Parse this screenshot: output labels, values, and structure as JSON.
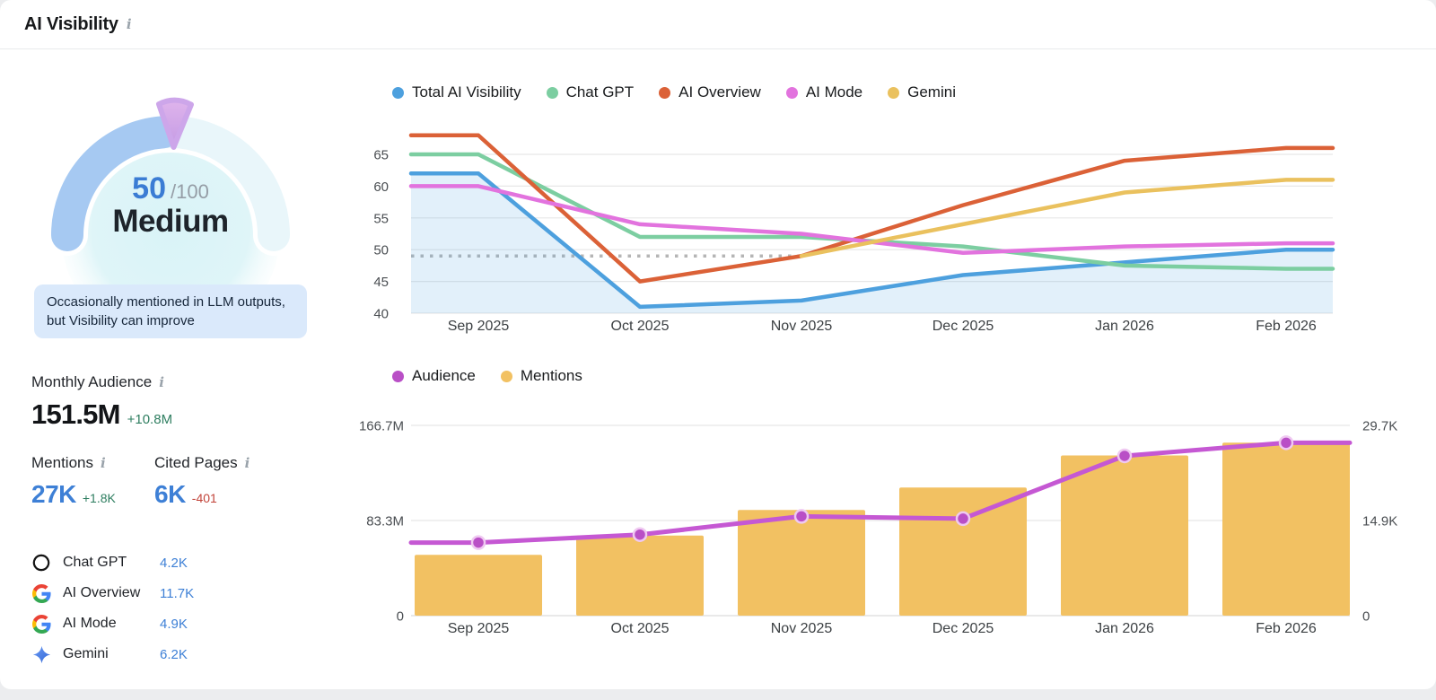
{
  "header": {
    "title": "AI Visibility",
    "info_glyph": "i"
  },
  "gauge": {
    "score": "50",
    "denominator": "/100",
    "level": "Medium",
    "insight": "Occasionally mentioned in LLM outputs, but Visibility can improve"
  },
  "stats": {
    "monthly_audience": {
      "label": "Monthly Audience",
      "value": "151.5M",
      "change": "+10.8M",
      "trend": "up"
    },
    "mentions": {
      "label": "Mentions",
      "value": "27K",
      "change": "+1.8K",
      "trend": "up"
    },
    "cited_pages": {
      "label": "Cited Pages",
      "value": "6K",
      "change": "-401",
      "trend": "down"
    }
  },
  "platforms": [
    {
      "icon": "chatgpt-icon",
      "name": "Chat GPT",
      "value": "4.2K"
    },
    {
      "icon": "google-icon",
      "name": "AI Overview",
      "value": "11.7K"
    },
    {
      "icon": "google-icon",
      "name": "AI Mode",
      "value": "4.9K"
    },
    {
      "icon": "gemini-icon",
      "name": "Gemini",
      "value": "6.2K"
    }
  ],
  "chart_data": [
    {
      "type": "line",
      "name": "ai-visibility-trend",
      "x": [
        "Sep 2025",
        "Oct 2025",
        "Nov 2025",
        "Dec 2025",
        "Jan 2026",
        "Feb 2026"
      ],
      "yticks": [
        40,
        45,
        50,
        55,
        60,
        65
      ],
      "ylim": [
        40,
        68
      ],
      "grid": true,
      "legend_position": "top",
      "series": [
        {
          "name": "Total AI Visibility",
          "color": "#4DA0DE",
          "area": true,
          "values": [
            62,
            41,
            42,
            46,
            48,
            50
          ]
        },
        {
          "name": "Chat GPT",
          "color": "#7CCEA1",
          "values": [
            65,
            52,
            52,
            50.5,
            47.5,
            47
          ]
        },
        {
          "name": "AI Overview",
          "color": "#DB6137",
          "values": [
            68,
            45,
            49,
            57,
            64,
            66
          ]
        },
        {
          "name": "AI Mode",
          "color": "#E273DE",
          "values": [
            60,
            54,
            52.5,
            49.5,
            50.5,
            51
          ]
        },
        {
          "name": "Gemini",
          "color": "#EAC15E",
          "values": [
            null,
            null,
            49,
            54,
            59,
            61
          ]
        }
      ],
      "baseline": {
        "value": 49,
        "style": "dotted",
        "to_month_index": 2,
        "color": "#B5B5B5"
      }
    },
    {
      "type": "bar+line",
      "name": "audience-mentions",
      "x": [
        "Sep 2025",
        "Oct 2025",
        "Nov 2025",
        "Dec 2025",
        "Jan 2026",
        "Feb 2026"
      ],
      "left_axis": {
        "ticks": [
          "166.7M",
          "83.3M",
          "0"
        ],
        "max": 166.7,
        "unit": "M"
      },
      "right_axis": {
        "ticks": [
          "29.7K",
          "14.9K",
          "0"
        ],
        "max": 29.7,
        "unit": "K"
      },
      "legend_position": "top",
      "series": [
        {
          "name": "Audience",
          "type": "line",
          "axis": "left",
          "color": "#C558D3",
          "dot_color": "#B94FC6",
          "values": [
            64,
            71,
            87,
            85,
            140,
            151.5
          ]
        },
        {
          "name": "Mentions",
          "type": "bar",
          "axis": "right",
          "color": "#F2C162",
          "values": [
            9.5,
            12.5,
            16.5,
            20,
            25,
            27
          ]
        }
      ]
    }
  ],
  "colors": {
    "accent_blue": "#3E80D6",
    "positive": "#2E7E60",
    "negative": "#C2443A",
    "muted": "#9AA3AB",
    "grid": "#E7E7E7"
  }
}
